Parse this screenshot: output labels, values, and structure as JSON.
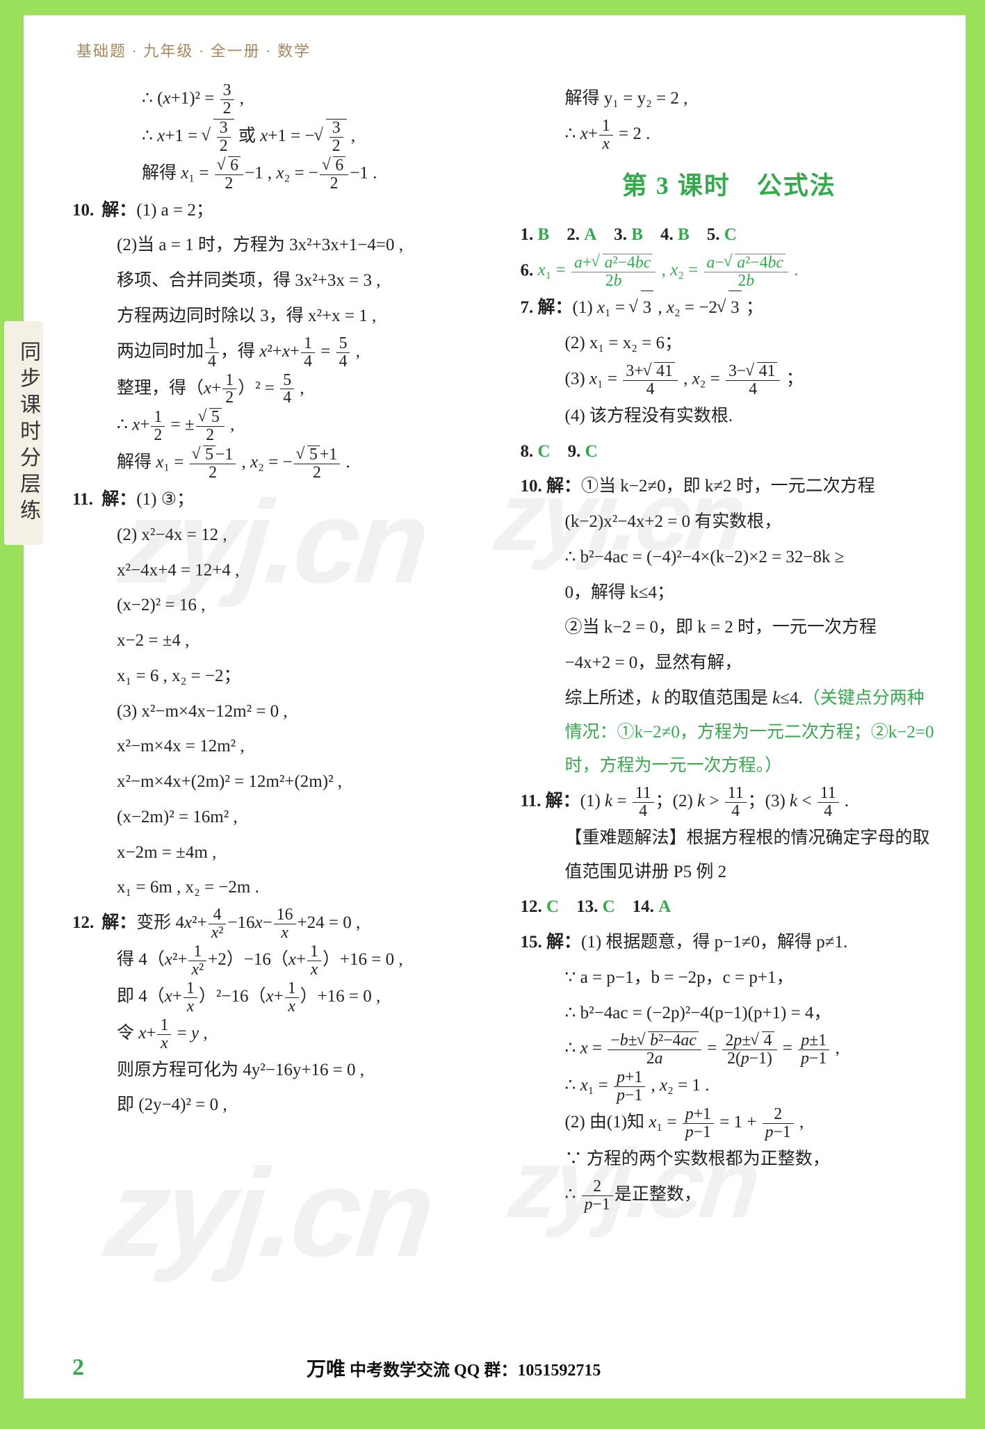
{
  "header": "基础题 · 九年级 · 全一册 · 数学",
  "sidebar": "同步课时分层练",
  "watermark": "zyj.cn",
  "footer": {
    "page": "2",
    "brand": "万唯",
    "text": "中考数学交流 QQ 群：1051592715"
  },
  "left": {
    "pre": [
      "∴ (x+1)² = 3/2 ,",
      "∴ x+1 = √(3/2) 或 x+1 = −√(3/2) ,",
      "解得 x₁ = √6/2 −1 , x₂ = −√6/2 −1 ."
    ],
    "q10": {
      "label": "10. 解：",
      "p1": "(1) a = 2；",
      "lines": [
        "(2)当 a = 1 时，方程为 3x²+3x+1−4=0 ,",
        "移项、合并同类项，得 3x²+3x = 3 ,",
        "方程两边同时除以 3，得 x²+x = 1 ,",
        "两边同时加 1/4 ，得 x²+x+ 1/4 = 5/4 ,",
        "整理，得 (x+ 1/2 )² = 5/4 ,",
        "∴ x+ 1/2 = ± √5/2 ,",
        "解得 x₁ = (√5−1)/2 , x₂ = −(√5+1)/2 ."
      ]
    },
    "q11": {
      "label": "11. 解：",
      "p1": "(1) ③；",
      "lines": [
        "(2) x²−4x = 12 ,",
        "x²−4x+4 = 12+4 ,",
        "(x−2)² = 16 ,",
        "x−2 = ±4 ,",
        "x₁ = 6 , x₂ = −2；",
        "(3) x²−m×4x−12m² = 0 ,",
        "x²−m×4x = 12m² ,",
        "x²−m×4x+(2m)² = 12m²+(2m)² ,",
        "(x−2m)² = 16m² ,",
        "x−2m = ±4m ,",
        "x₁ = 6m , x₂ = −2m ."
      ]
    },
    "q12": {
      "label": "12. 解：",
      "p1": "变形 4x²+ 4/x² −16x− 16/x +24 = 0 ,",
      "lines": [
        "得 4(x²+ 1/x² +2)−16(x+ 1/x )+16 = 0 ,",
        "即 4(x+ 1/x )²−16(x+ 1/x )+16 = 0 ,",
        "令 x+ 1/x = y ,",
        "则原方程可化为 4y²−16y+16 = 0 ,",
        "即 (2y−4)² = 0 ,"
      ]
    }
  },
  "right": {
    "cont": [
      "解得 y₁ = y₂ = 2 ,",
      "∴ x+ 1/x = 2 ."
    ],
    "section": "第 3 课时　公式法",
    "answers15": "1. B　2. A　3. B　4. B　5. C",
    "q6": "x₁ = (a+√(a²−4bc))/(2b) , x₂ = (a−√(a²−4bc))/(2b) .",
    "q7": {
      "label": "7. 解：",
      "lines": [
        "(1) x₁ = √3 , x₂ = −2√3 ；",
        "(2) x₁ = x₂ = 6；",
        "(3) x₁ = (3+√41)/4 , x₂ = (3−√41)/4 ；",
        "(4) 该方程没有实数根."
      ]
    },
    "a89": "8. C　9. C",
    "q10": {
      "label": "10. 解：",
      "lines": [
        "①当 k−2≠0，即 k≠2 时，一元二次方程",
        "(k−2)x²−4x+2 = 0 有实数根，",
        "∴ b²−4ac = (−4)²−4×(k−2)×2 = 32−8k ≥",
        "0，解得 k≤4；",
        "②当 k−2 = 0，即 k = 2 时，一元一次方程",
        "−4x+2 = 0，显然有解，",
        "综上所述，k 的取值范围是 k≤4."
      ],
      "note": "（关键点分两种情况：①k−2≠0，方程为一元二次方程；②k−2=0 时，方程为一元一次方程。）"
    },
    "q11": "11. 解：(1) k = 11/4；(2) k > 11/4；(3) k < 11/4 .",
    "q11note": "【重难题解法】根据方程根的情况确定字母的取值范围见讲册 P5 例 2",
    "a1214": "12. C　13. C　14. A",
    "q15": {
      "label": "15. 解：",
      "lines": [
        "(1) 根据题意，得 p−1≠0，解得 p≠1.",
        "∵ a = p−1，b = −2p，c = p+1，",
        "∴ b²−4ac = (−2p)²−4(p−1)(p+1) = 4，",
        "∴ x = (−b±√(b²−4ac))/(2a) = (2p±√4)/(2(p−1)) = (p±1)/(p−1) ,",
        "∴ x₁ = (p+1)/(p−1) , x₂ = 1 .",
        "(2) 由(1)知 x₁ = (p+1)/(p−1) = 1 + 2/(p−1) ,",
        "∵ 方程的两个实数根都为正整数，",
        "∴ 2/(p−1) 是正整数，"
      ]
    }
  }
}
